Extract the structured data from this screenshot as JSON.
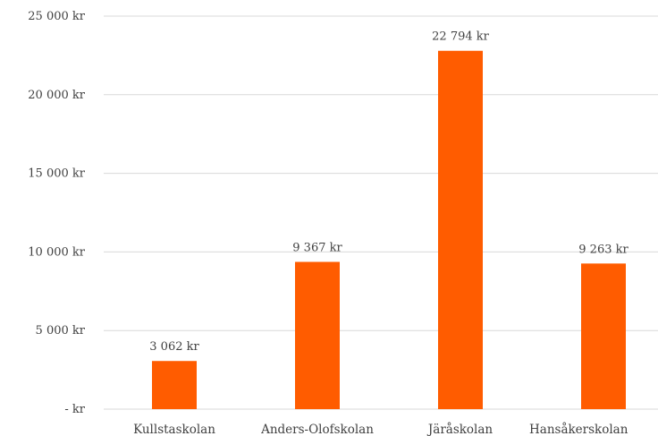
{
  "chart_data": {
    "type": "bar",
    "categories": [
      "Kullstaskolan",
      "Anders-Olofskolan",
      "Järåskolan",
      "Hansåkerskolan"
    ],
    "values": [
      3062,
      9367,
      22794,
      9263
    ],
    "data_labels": [
      "3 062 kr",
      "9 367 kr",
      "22 794 kr",
      "9 263 kr"
    ],
    "title": "",
    "xlabel": "",
    "ylabel": "",
    "ylim": [
      0,
      25000
    ],
    "yticks": [
      0,
      5000,
      10000,
      15000,
      20000,
      25000
    ],
    "ytick_labels": [
      "-   kr",
      "5 000 kr",
      "10 000 kr",
      "15 000 kr",
      "20 000 kr",
      "25 000 kr"
    ],
    "grid": true,
    "legend": "none",
    "bar_color": "#ff5c00"
  }
}
